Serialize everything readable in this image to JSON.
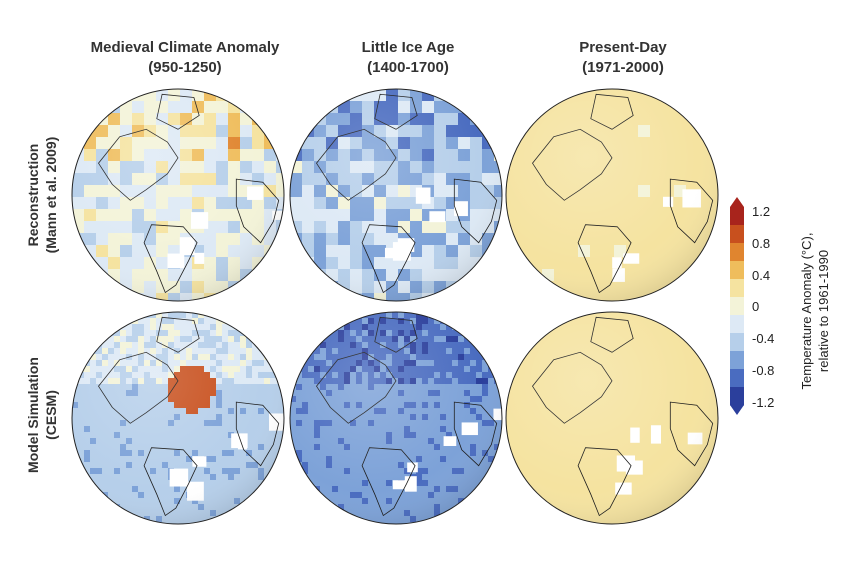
{
  "columns": [
    {
      "title": "Medieval Climate Anomaly",
      "subtitle": "(950-1250)"
    },
    {
      "title": "Little Ice Age",
      "subtitle": "(1400-1700)"
    },
    {
      "title": "Present-Day",
      "subtitle": "(1971-2000)"
    }
  ],
  "rows": [
    {
      "title": "Reconstruction",
      "subtitle": "(Mann et al. 2009)"
    },
    {
      "title": "Model Simulation",
      "subtitle": "(CESM)"
    }
  ],
  "colorbar": {
    "title": "Temperature Anomaly (°C),",
    "subtitle": "relative to 1961-1990",
    "ticks": [
      "1.2",
      "0.8",
      "0.4",
      "0",
      "-0.4",
      "-0.8",
      "-1.2"
    ],
    "min": -1.2,
    "max": 1.2,
    "colors": [
      "#2b3f9c",
      "#4a6cc0",
      "#7da2d8",
      "#b6cfea",
      "#dde9f5",
      "#f3f3d8",
      "#f5e3a0",
      "#efbd5c",
      "#e0852f",
      "#c8501e",
      "#a8241c"
    ]
  },
  "panels": [
    {
      "id": "recon-mca",
      "base_anomaly": -0.15,
      "style": "pixel"
    },
    {
      "id": "recon-lia",
      "base_anomaly": -0.45,
      "style": "pixel"
    },
    {
      "id": "recon-present",
      "base_anomaly": 0.2,
      "style": "pixel"
    },
    {
      "id": "model-mca",
      "base_anomaly": -0.5,
      "style": "smooth"
    },
    {
      "id": "model-lia",
      "base_anomaly": -0.75,
      "style": "smooth"
    },
    {
      "id": "model-present",
      "base_anomaly": 0.25,
      "style": "smooth"
    }
  ]
}
